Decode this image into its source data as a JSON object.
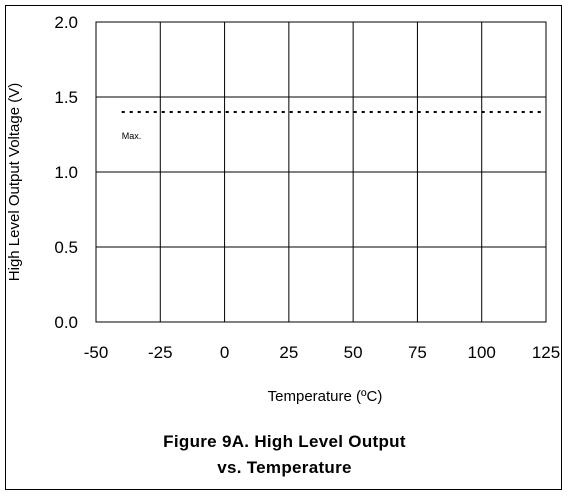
{
  "chart_data": {
    "type": "line",
    "xlabel": "Temperature (ºC)",
    "ylabel": "High Level Output Voltage (V)",
    "xlim": [
      -50,
      125
    ],
    "ylim": [
      0,
      2
    ],
    "x_ticks": [
      "-50",
      "-25",
      "0",
      "25",
      "50",
      "75",
      "100",
      "125"
    ],
    "y_ticks": [
      "0.0",
      "0.5",
      "1.0",
      "1.5",
      "2.0"
    ],
    "grid": true,
    "series": [
      {
        "name": "Max.",
        "style": "dotted",
        "color": "#000000",
        "x": [
          -40,
          125
        ],
        "y": [
          1.4,
          1.4
        ]
      }
    ]
  },
  "caption": {
    "line1": "Figure 9A. High Level Output",
    "line2": "vs. Temperature"
  }
}
